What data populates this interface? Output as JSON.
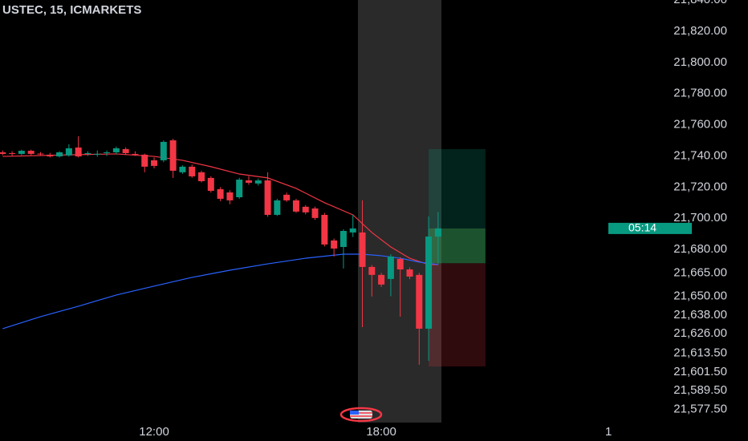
{
  "chart_data": {
    "type": "candlestick",
    "title": "USTEC, 15, ICMARKETS",
    "x": [
      8.0,
      8.25,
      8.5,
      8.75,
      9.0,
      9.25,
      9.5,
      9.75,
      10.0,
      10.25,
      10.5,
      10.75,
      11.0,
      11.25,
      11.5,
      11.75,
      12.0,
      12.25,
      12.5,
      12.75,
      13.0,
      13.25,
      13.5,
      13.75,
      14.0,
      14.25,
      14.5,
      14.75,
      15.0,
      15.25,
      15.5,
      15.75,
      16.0,
      16.25,
      16.5,
      16.75,
      17.0,
      17.25,
      17.5,
      17.75,
      18.0,
      18.25,
      18.5,
      18.75,
      19.0,
      19.25,
      19.5
    ],
    "open": [
      21742.3,
      21741.8,
      21741.3,
      21743.3,
      21741.5,
      21740.8,
      21739.7,
      21740.3,
      21745.4,
      21741.3,
      21741.3,
      21741.8,
      21742.3,
      21744.4,
      21741.3,
      21740.8,
      21737.2,
      21737.2,
      21750.0,
      21729.5,
      21733.1,
      21729.5,
      21725.9,
      21718.7,
      21716.6,
      21713.5,
      21724.3,
      21722.3,
      21724.3,
      21702.2,
      21715.1,
      21711.5,
      21707.4,
      21706.3,
      21702.2,
      21685.8,
      21681.6,
      21690.9,
      21690.9,
      21668.8,
      21663.7,
      21661.1,
      21673.9,
      21667.2,
      21663.7,
      21629.2,
      21688.3
    ],
    "high": [
      21743.5,
      21743.0,
      21744.0,
      21744.0,
      21742.5,
      21742.0,
      21743.0,
      21747.5,
      21752.6,
      21743.0,
      21743.5,
      21743.5,
      21746.0,
      21745.5,
      21743.0,
      21741.5,
      21739.0,
      21750.0,
      21751.0,
      21734.0,
      21734.5,
      21730.5,
      21727.0,
      21720.0,
      21718.0,
      21726.0,
      21727.0,
      21725.5,
      21729.5,
      21712.5,
      21716.5,
      21712.5,
      21708.5,
      21707.5,
      21703.5,
      21687.0,
      21693.0,
      21702.2,
      21711.5,
      21670.0,
      21665.0,
      21677.0,
      21675.0,
      21668.5,
      21665.0,
      21701.2,
      21704.0
    ],
    "low": [
      21740.5,
      21740.0,
      21740.5,
      21740.5,
      21740.0,
      21739.0,
      21739.0,
      21739.5,
      21739.0,
      21740.0,
      21739.5,
      21740.0,
      21741.0,
      21740.5,
      21740.0,
      21729.5,
      21732.0,
      21736.0,
      21725.9,
      21728.5,
      21726.0,
      21723.0,
      21716.5,
      21711.0,
      21709.0,
      21712.5,
      21721.5,
      21721.0,
      21701.0,
      21701.5,
      21710.5,
      21703.5,
      21702.5,
      21699.0,
      21682.0,
      21675.5,
      21667.8,
      21688.0,
      21630.2,
      21649.8,
      21656.0,
      21650.0,
      21636.9,
      21661.0,
      21606.1,
      21608.6,
      21670.3
    ],
    "close": [
      21741.3,
      21741.3,
      21743.3,
      21741.3,
      21741.0,
      21739.7,
      21742.3,
      21744.9,
      21739.7,
      21741.8,
      21741.3,
      21742.3,
      21744.9,
      21741.8,
      21741.0,
      21733.1,
      21733.6,
      21749.0,
      21730.5,
      21733.1,
      21726.9,
      21723.8,
      21717.6,
      21712.5,
      21711.5,
      21724.8,
      21722.8,
      21724.3,
      21702.2,
      21711.5,
      21711.5,
      21704.3,
      21703.8,
      21700.2,
      21683.2,
      21680.6,
      21691.9,
      21693.5,
      21668.8,
      21663.7,
      21657.5,
      21675.5,
      21667.2,
      21662.6,
      21629.2,
      21688.3,
      21693.5
    ],
    "up_color": "#089981",
    "down_color": "#f23645",
    "lines": [
      {
        "color": "#f23645",
        "x": [
          8.0,
          10.0,
          11.0,
          12.0,
          12.75,
          13.5,
          14.25,
          15.0,
          15.75,
          16.5,
          17.25,
          17.75,
          18.25,
          18.75,
          19.25,
          19.5
        ],
        "values": [
          21739.7,
          21740.8,
          21741.3,
          21739.7,
          21737.2,
          21733.1,
          21728.4,
          21725.9,
          21719.2,
          21710.0,
          21702.2,
          21690.9,
          21681.6,
          21674.4,
          21670.3,
          21670.3
        ]
      },
      {
        "color": "#2962ff",
        "x": [
          8.0,
          9.0,
          10.0,
          11.0,
          12.0,
          13.0,
          14.0,
          15.0,
          16.0,
          17.0,
          17.5,
          18.0,
          18.5,
          19.0,
          19.5
        ],
        "values": [
          21629.2,
          21636.9,
          21643.6,
          21650.8,
          21656.5,
          21662.1,
          21666.7,
          21670.8,
          21674.4,
          21677.0,
          21677.0,
          21676.0,
          21674.4,
          21671.9,
          21670.3
        ]
      }
    ],
    "position": {
      "x_range": [
        19.25,
        20.75
      ],
      "target": 21744.4,
      "entry": 21671.2,
      "stop": 21605.0
    },
    "last_price": 21693.5,
    "countdown": "05:14",
    "xlim": [
      7.93,
      24.25
    ],
    "ylim": [
      21569.0,
      21840.0
    ],
    "xticks": [
      {
        "value": 12,
        "label": "12:00"
      },
      {
        "value": 18,
        "label": "18:00"
      },
      {
        "value": 24,
        "label": "1"
      }
    ],
    "yticks": [
      {
        "value": 21840,
        "label": "21,840.00"
      },
      {
        "value": 21820,
        "label": "21,820.00"
      },
      {
        "value": 21800,
        "label": "21,800.00"
      },
      {
        "value": 21780,
        "label": "21,780.00"
      },
      {
        "value": 21760,
        "label": "21,760.00"
      },
      {
        "value": 21740,
        "label": "21,740.00"
      },
      {
        "value": 21720,
        "label": "21,720.00"
      },
      {
        "value": 21700,
        "label": "21,700.00"
      },
      {
        "value": 21680,
        "label": "21,680.00"
      },
      {
        "value": 21665,
        "label": "21,665.00"
      },
      {
        "value": 21650,
        "label": "21,650.00"
      },
      {
        "value": 21638,
        "label": "21,638.00"
      },
      {
        "value": 21626,
        "label": "21,626.00"
      },
      {
        "value": 21613.5,
        "label": "21,613.50"
      },
      {
        "value": 21601.5,
        "label": "21,601.50"
      },
      {
        "value": 21589.5,
        "label": "21,589.50"
      },
      {
        "value": 21577.5,
        "label": "21,577.50"
      }
    ]
  }
}
